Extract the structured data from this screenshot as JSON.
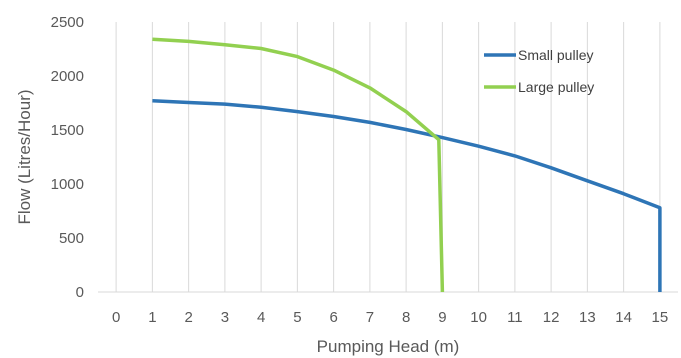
{
  "chart_data": {
    "type": "line",
    "title": "",
    "xlabel": "Pumping Head (m)",
    "ylabel": "Flow (Litres/Hour)",
    "x_ticks": [
      "0",
      "1",
      "2",
      "3",
      "4",
      "5",
      "6",
      "7",
      "8",
      "9",
      "10",
      "11",
      "12",
      "13",
      "14",
      "15"
    ],
    "y_ticks": [
      "0",
      "500",
      "1000",
      "1500",
      "2000",
      "2500"
    ],
    "xlim": [
      -0.5,
      15.5
    ],
    "ylim": [
      0,
      2500
    ],
    "grid": "vertical",
    "legend_position": "top-right",
    "series": [
      {
        "name": "Small pulley",
        "color": "#2e75b6",
        "points": [
          [
            1,
            1770
          ],
          [
            2,
            1755
          ],
          [
            3,
            1740
          ],
          [
            4,
            1710
          ],
          [
            5,
            1670
          ],
          [
            6,
            1625
          ],
          [
            7,
            1570
          ],
          [
            8,
            1505
          ],
          [
            9,
            1430
          ],
          [
            10,
            1350
          ],
          [
            11,
            1260
          ],
          [
            12,
            1150
          ],
          [
            13,
            1030
          ],
          [
            14,
            910
          ],
          [
            15,
            780
          ],
          [
            15,
            0
          ]
        ]
      },
      {
        "name": "Large pulley",
        "color": "#92d050",
        "points": [
          [
            1,
            2340
          ],
          [
            2,
            2320
          ],
          [
            3,
            2290
          ],
          [
            4,
            2255
          ],
          [
            5,
            2180
          ],
          [
            6,
            2055
          ],
          [
            7,
            1890
          ],
          [
            8,
            1670
          ],
          [
            8.9,
            1410
          ],
          [
            9,
            0
          ]
        ]
      }
    ]
  }
}
